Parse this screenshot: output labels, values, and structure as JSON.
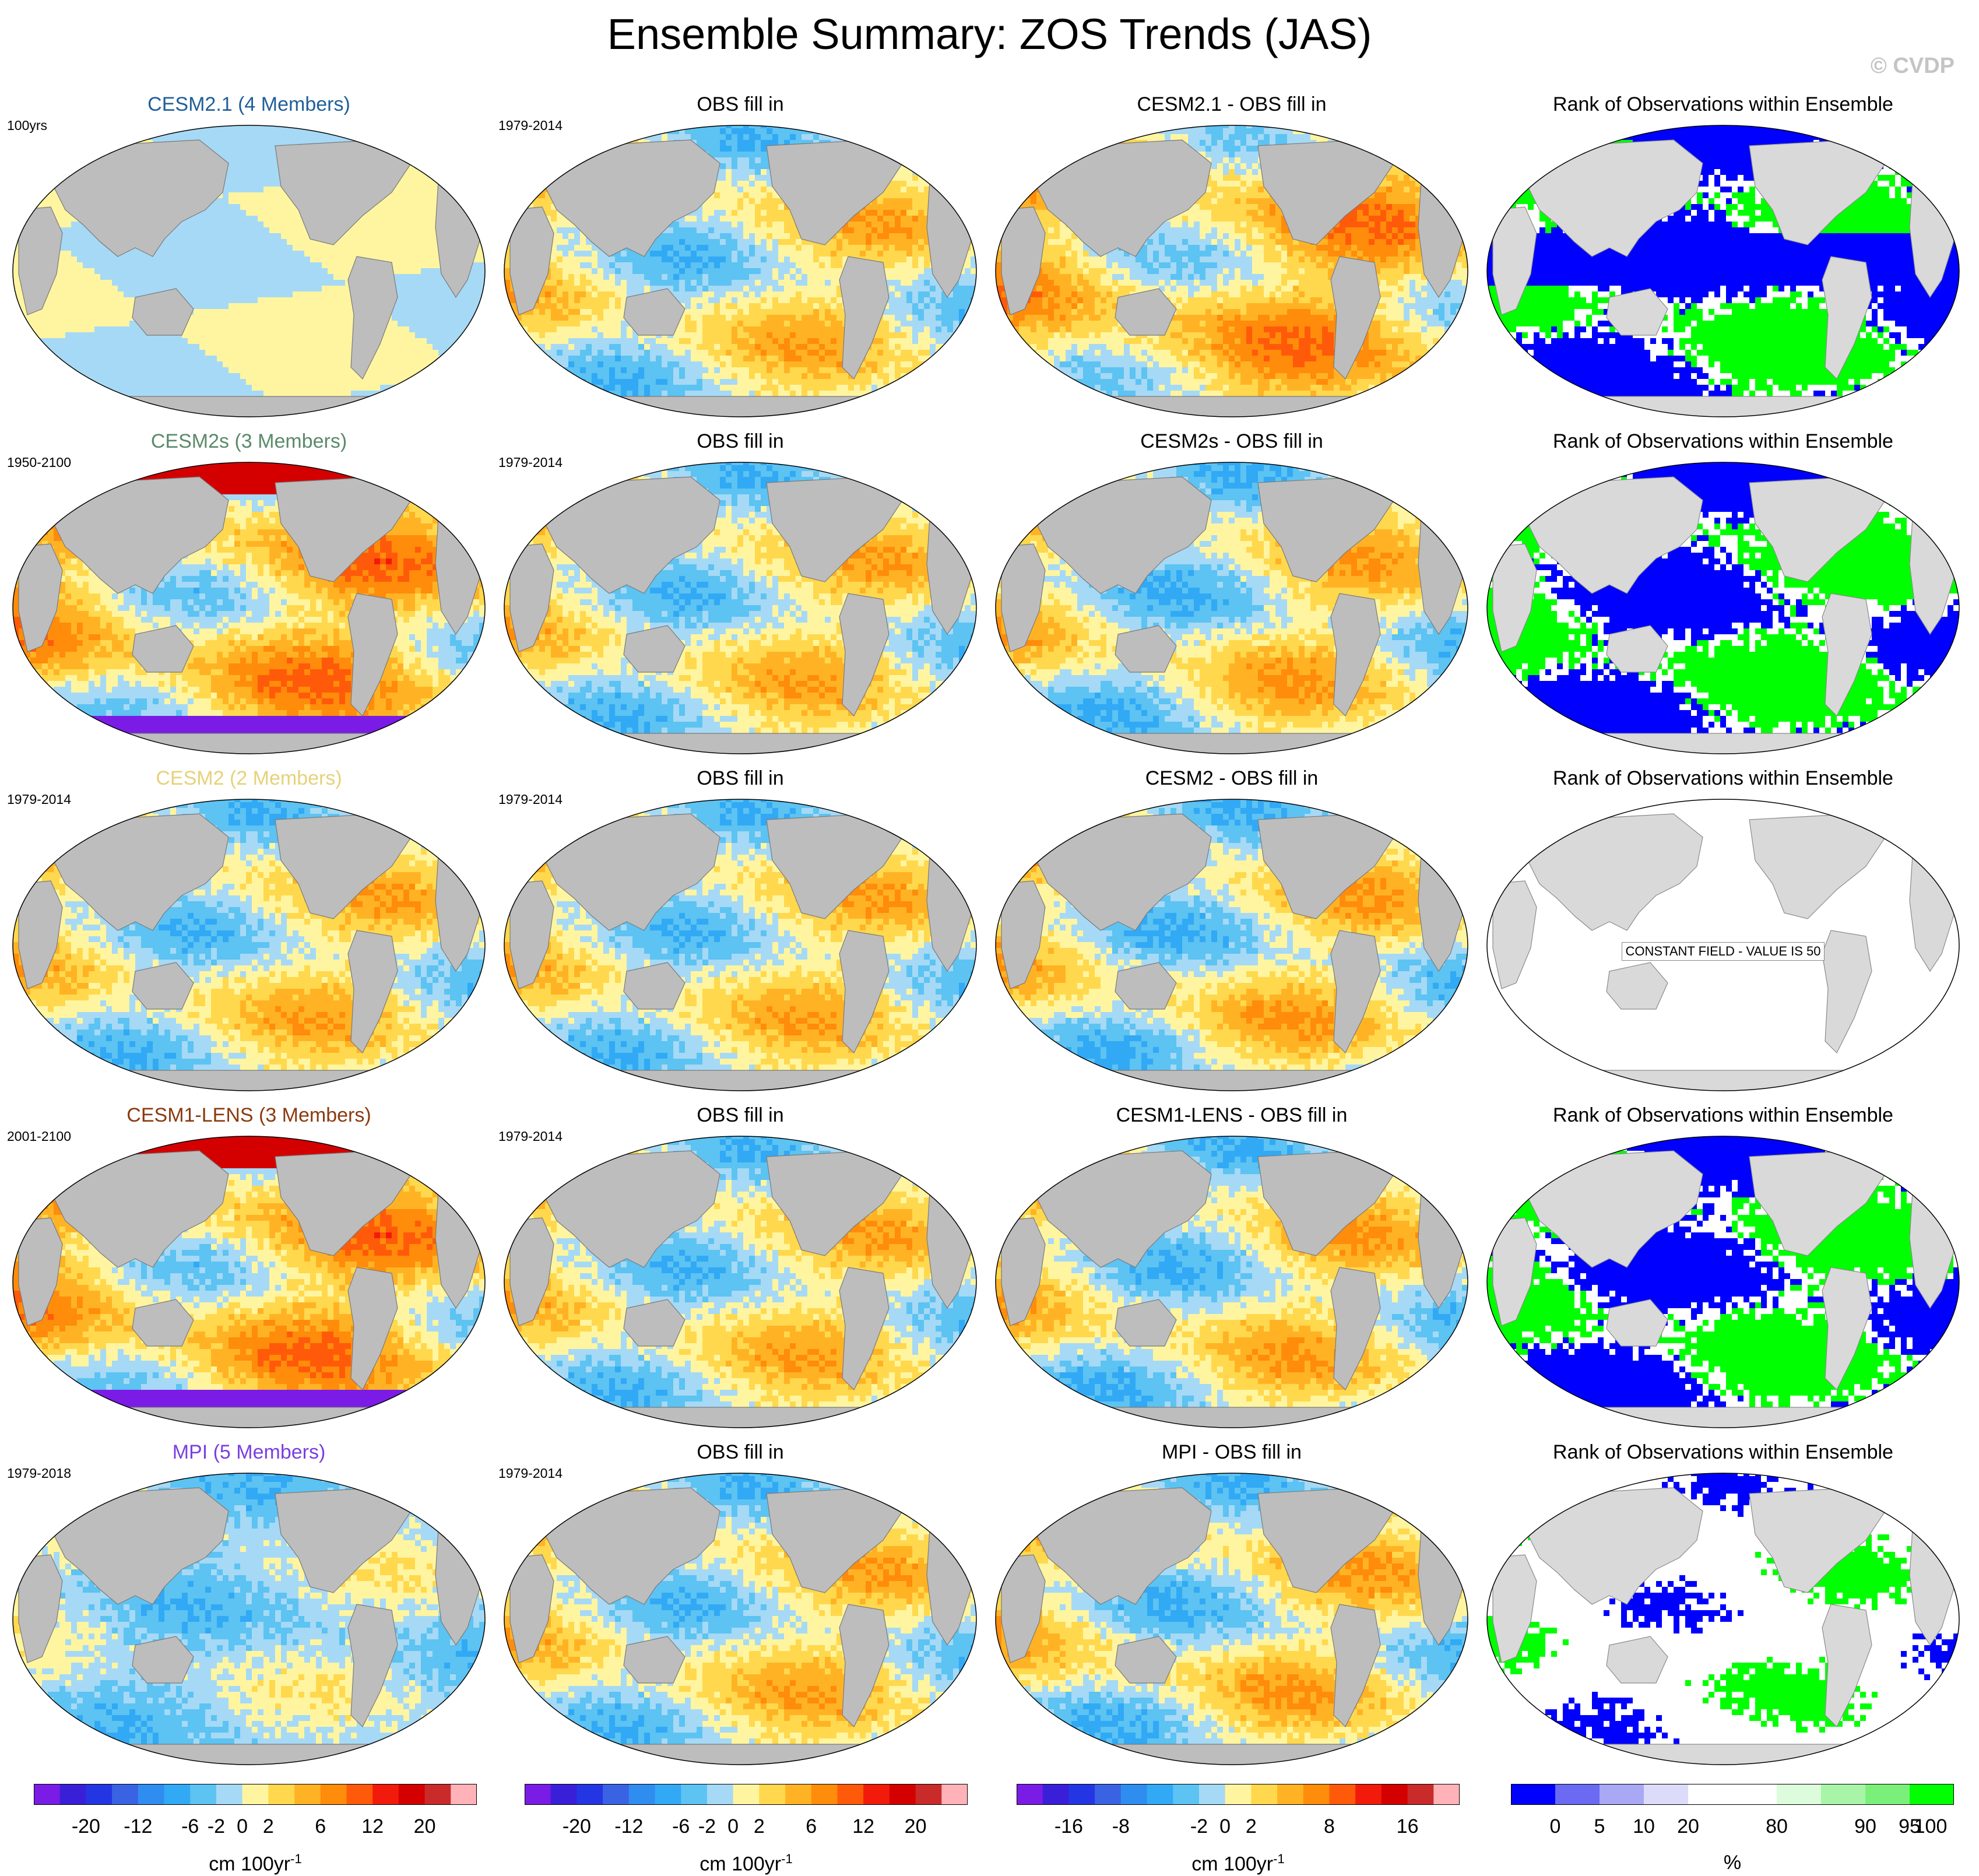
{
  "title": "Ensemble Summary: ZOS Trends (JAS)",
  "copyright": "© CVDP",
  "colors": {
    "ocean_fill_default": "#ffffff",
    "land_model": "#bdbdbd",
    "land_rank": "#d9d9d9",
    "trend_palette": [
      "#7a1be6",
      "#3a1fd9",
      "#2436e3",
      "#3a63e3",
      "#2f8df0",
      "#31a9f5",
      "#5cc3f2",
      "#a6d9f5",
      "#fff5a0",
      "#ffd84d",
      "#ffb324",
      "#ff8c0a",
      "#ff5a0a",
      "#f21a0a",
      "#d40000",
      "#c92a2a",
      "#ffb3b8"
    ],
    "rank_palette": [
      "#0000ff",
      "#6a6af2",
      "#a8a8f5",
      "#dcdcfa",
      "#ffffff",
      "#ffffff",
      "#dcfcdc",
      "#a8f5a8",
      "#7af07a",
      "#00ff00"
    ]
  },
  "rows": [
    {
      "model": {
        "title": "CESM2.1 (4 Members)",
        "title_color": "#1f5f99",
        "period": "100yrs",
        "pattern": "pale"
      },
      "obs": {
        "title": "OBS fill in",
        "period": "1979-2014",
        "pattern": "obs"
      },
      "diff": {
        "title": "CESM2.1 - OBS fill in",
        "pattern": "diff1"
      },
      "rank": {
        "title": "Rank of Observations within Ensemble",
        "pattern": "rank1"
      }
    },
    {
      "model": {
        "title": "CESM2s (3 Members)",
        "title_color": "#5a8a6a",
        "period": "1950-2100",
        "pattern": "strong"
      },
      "obs": {
        "title": "OBS fill in",
        "period": "1979-2014",
        "pattern": "obs"
      },
      "diff": {
        "title": "CESM2s - OBS fill in",
        "pattern": "diff2"
      },
      "rank": {
        "title": "Rank of Observations within Ensemble",
        "pattern": "rank2"
      }
    },
    {
      "model": {
        "title": "CESM2 (2 Members)",
        "title_color": "#e6d27a",
        "period": "1979-2014",
        "pattern": "obs"
      },
      "obs": {
        "title": "OBS fill in",
        "period": "1979-2014",
        "pattern": "obs"
      },
      "diff": {
        "title": "CESM2 - OBS fill in",
        "pattern": "diff3"
      },
      "rank": {
        "title": "Rank of Observations within Ensemble",
        "pattern": "constant",
        "constant_text": "CONSTANT FIELD - VALUE IS 50"
      }
    },
    {
      "model": {
        "title": "CESM1-LENS (3 Members)",
        "title_color": "#8b3a0f",
        "period": "2001-2100",
        "pattern": "strong"
      },
      "obs": {
        "title": "OBS fill in",
        "period": "1979-2014",
        "pattern": "obs"
      },
      "diff": {
        "title": "CESM1-LENS - OBS fill in",
        "pattern": "diff4"
      },
      "rank": {
        "title": "Rank of Observations within Ensemble",
        "pattern": "rank4"
      }
    },
    {
      "model": {
        "title": "MPI (5 Members)",
        "title_color": "#7a3fe0",
        "period": "1979-2018",
        "pattern": "mpi"
      },
      "obs": {
        "title": "OBS fill in",
        "period": "1979-2014",
        "pattern": "obs"
      },
      "diff": {
        "title": "MPI - OBS fill in",
        "pattern": "diff5"
      },
      "rank": {
        "title": "Rank of Observations within Ensemble",
        "pattern": "rank5"
      }
    }
  ],
  "colorbars": [
    {
      "label": "cm 100yr",
      "label_sup": "-1",
      "palette": "trend",
      "ticks": [
        "-20",
        "-12",
        "-6",
        "-2",
        "0",
        "2",
        "6",
        "12",
        "20"
      ]
    },
    {
      "label": "cm 100yr",
      "label_sup": "-1",
      "palette": "trend",
      "ticks": [
        "-20",
        "-12",
        "-6",
        "-2",
        "0",
        "2",
        "6",
        "12",
        "20"
      ]
    },
    {
      "label": "cm 100yr",
      "label_sup": "-1",
      "palette": "trend",
      "ticks": [
        "-16",
        "-8",
        "-2",
        "0",
        "2",
        "8",
        "16"
      ]
    },
    {
      "label": "%",
      "label_sup": "",
      "palette": "rank",
      "ticks": [
        "0",
        "5",
        "10",
        "20",
        "80",
        "90",
        "95",
        "100"
      ]
    }
  ],
  "chart_data": {
    "type": "heatmap",
    "title": "Ensemble Summary: ZOS Trends (JAS)",
    "variable": "ZOS trends",
    "season": "JAS",
    "panels_per_row": [
      "model",
      "OBS fill in",
      "model - OBS fill in",
      "Rank of Observations within Ensemble"
    ],
    "trend_units": "cm 100yr-1",
    "trend_levels": [
      -20,
      -16,
      -12,
      -8,
      -6,
      -4,
      -2,
      -1,
      0,
      1,
      2,
      4,
      6,
      8,
      12,
      16,
      20
    ],
    "trend_tick_labels_main": [
      -20,
      -12,
      -6,
      -2,
      0,
      2,
      6,
      12,
      20
    ],
    "trend_tick_labels_diff": [
      -16,
      -8,
      -2,
      0,
      2,
      8,
      16
    ],
    "rank_units": "%",
    "rank_levels": [
      0,
      5,
      10,
      20,
      80,
      90,
      95,
      100
    ],
    "rank_constant_value": 50
  }
}
